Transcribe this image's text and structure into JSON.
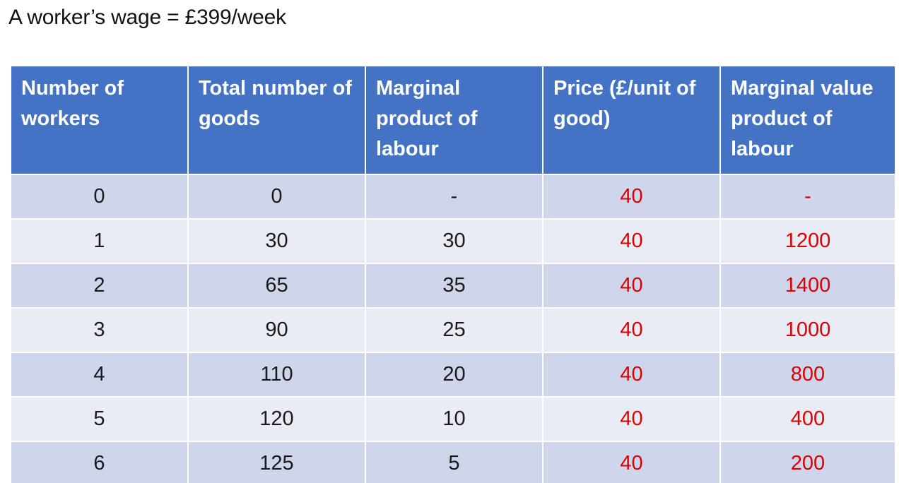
{
  "title": "A worker’s wage = £399/week",
  "table": {
    "headers": [
      "Number of workers",
      "Total number of goods",
      "Marginal product of labour",
      "Price (£/unit of good)",
      "Marginal value product of labour"
    ],
    "rows": [
      [
        "0",
        "0",
        "-",
        "40",
        "-"
      ],
      [
        "1",
        "30",
        "30",
        "40",
        "1200"
      ],
      [
        "2",
        "65",
        "35",
        "40",
        "1400"
      ],
      [
        "3",
        "90",
        "25",
        "40",
        "1000"
      ],
      [
        "4",
        "110",
        "20",
        "40",
        "800"
      ],
      [
        "5",
        "120",
        "10",
        "40",
        "400"
      ],
      [
        "6",
        "125",
        "5",
        "40",
        "200"
      ]
    ]
  },
  "colors": {
    "header_bg": "#4472c4",
    "row_dark": "#cfd5ea",
    "row_light": "#e9ebf5",
    "highlight_text": "#e00000"
  }
}
